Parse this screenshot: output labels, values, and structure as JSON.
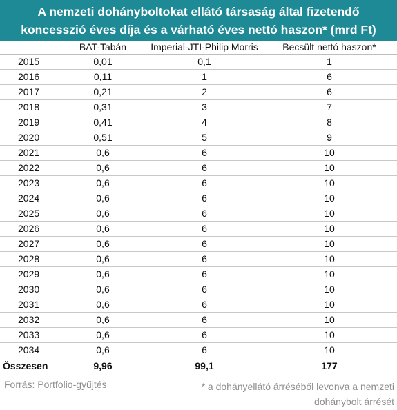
{
  "title": {
    "line1": "A nemzeti dohányboltokat ellátó társaság által fizetendő",
    "line2": "koncesszió éves díja és a várható éves nettó haszon* (mrd Ft)"
  },
  "chart_data": {
    "type": "table",
    "columns": [
      "",
      "BAT-Tabán",
      "Imperial-JTI-Philip Morris",
      "Becsült nettó haszon*"
    ],
    "rows": [
      [
        "2015",
        "0,01",
        "0,1",
        "1"
      ],
      [
        "2016",
        "0,11",
        "1",
        "6"
      ],
      [
        "2017",
        "0,21",
        "2",
        "6"
      ],
      [
        "2018",
        "0,31",
        "3",
        "7"
      ],
      [
        "2019",
        "0,41",
        "4",
        "8"
      ],
      [
        "2020",
        "0,51",
        "5",
        "9"
      ],
      [
        "2021",
        "0,6",
        "6",
        "10"
      ],
      [
        "2022",
        "0,6",
        "6",
        "10"
      ],
      [
        "2023",
        "0,6",
        "6",
        "10"
      ],
      [
        "2024",
        "0,6",
        "6",
        "10"
      ],
      [
        "2025",
        "0,6",
        "6",
        "10"
      ],
      [
        "2026",
        "0,6",
        "6",
        "10"
      ],
      [
        "2027",
        "0,6",
        "6",
        "10"
      ],
      [
        "2028",
        "0,6",
        "6",
        "10"
      ],
      [
        "2029",
        "0,6",
        "6",
        "10"
      ],
      [
        "2030",
        "0,6",
        "6",
        "10"
      ],
      [
        "2031",
        "0,6",
        "6",
        "10"
      ],
      [
        "2032",
        "0,6",
        "6",
        "10"
      ],
      [
        "2033",
        "0,6",
        "6",
        "10"
      ],
      [
        "2034",
        "0,6",
        "6",
        "10"
      ]
    ],
    "total": [
      "Összesen",
      "9,96",
      "99,1",
      "177"
    ]
  },
  "footer": {
    "source": "Forrás: Portfolio-gyűjtés",
    "note_line1": "* a dohányellátó árréséből levonva a nemzeti",
    "note_line2": "dohánybolt árrését"
  },
  "colors": {
    "header_bg": "#1d8a96",
    "header_text": "#ffffff",
    "footer_text": "#8e8e8e"
  }
}
